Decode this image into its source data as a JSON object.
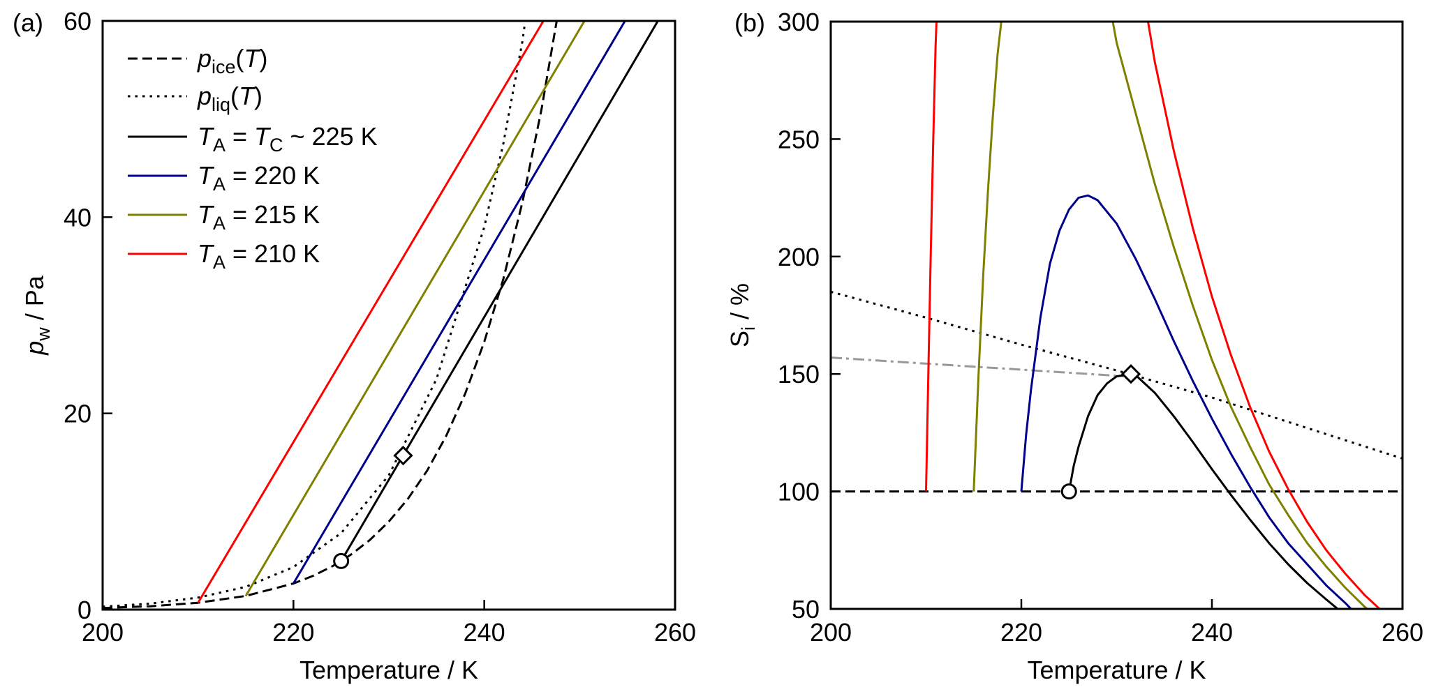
{
  "chart_data": [
    {
      "panel_label": "(a)",
      "type": "line",
      "xlabel": "Temperature / K",
      "ylabel": [
        {
          "t": "p",
          "i": true
        },
        {
          "t": "w",
          "sub": true
        },
        {
          "t": " / Pa"
        }
      ],
      "xlim": [
        200,
        260
      ],
      "ylim": [
        0,
        60
      ],
      "xticks": [
        200,
        220,
        240,
        260
      ],
      "yticks": [
        0,
        20,
        40,
        60
      ],
      "grid": false,
      "legend": {
        "placement": "top-left",
        "entries": [
          {
            "series": 0,
            "label": [
              {
                "t": "p",
                "i": true
              },
              {
                "t": "ice",
                "sub": true
              },
              {
                "t": "("
              },
              {
                "t": "T",
                "i": true
              },
              {
                "t": ")"
              }
            ]
          },
          {
            "series": 1,
            "label": [
              {
                "t": "p",
                "i": true
              },
              {
                "t": "liq",
                "sub": true
              },
              {
                "t": "("
              },
              {
                "t": "T",
                "i": true
              },
              {
                "t": ")"
              }
            ]
          },
          {
            "series": 2,
            "label": [
              {
                "t": "T",
                "i": true
              },
              {
                "t": "A",
                "sub": true
              },
              {
                "t": " = "
              },
              {
                "t": "T",
                "i": true
              },
              {
                "t": "C",
                "sub": true
              },
              {
                "t": " ~ 225 K"
              }
            ]
          },
          {
            "series": 3,
            "label": [
              {
                "t": "T",
                "i": true
              },
              {
                "t": "A",
                "sub": true
              },
              {
                "t": " = 220 K"
              }
            ]
          },
          {
            "series": 4,
            "label": [
              {
                "t": "T",
                "i": true
              },
              {
                "t": "A",
                "sub": true
              },
              {
                "t": " = 215 K"
              }
            ]
          },
          {
            "series": 5,
            "label": [
              {
                "t": "T",
                "i": true
              },
              {
                "t": "A",
                "sub": true
              },
              {
                "t": " = 210 K"
              }
            ]
          }
        ]
      },
      "series": [
        {
          "name": "p_ice(T)",
          "color": "#000000",
          "linestyle": "dashed",
          "x": [
            200,
            205,
            210,
            215,
            220,
            222,
            224,
            225,
            226,
            228,
            230,
            232,
            234,
            236,
            238,
            240,
            242,
            244,
            246,
            248
          ],
          "y": [
            0.16,
            0.34,
            0.7,
            1.39,
            2.66,
            3.42,
            4.38,
            4.95,
            5.59,
            7.09,
            8.97,
            11.29,
            14.15,
            17.68,
            22.0,
            27.3,
            33.7,
            41.5,
            51.0,
            62.3
          ]
        },
        {
          "name": "p_liq(T)",
          "color": "#000000",
          "linestyle": "dotted",
          "x": [
            200,
            205,
            210,
            215,
            220,
            225,
            230,
            235,
            240,
            242,
            244,
            245
          ],
          "y": [
            0.3,
            0.61,
            1.22,
            2.32,
            4.34,
            7.8,
            13.7,
            23.5,
            39.0,
            47.5,
            57.9,
            65.0
          ]
        },
        {
          "name": "T_A = T_C ~ 225 K",
          "color": "#000000",
          "linestyle": "solid",
          "x": [
            225,
            258.2
          ],
          "y": [
            4.95,
            60
          ]
        },
        {
          "name": "T_A = 220 K",
          "color": "#00008B",
          "linestyle": "solid",
          "x": [
            220,
            254.75
          ],
          "y": [
            2.66,
            60
          ]
        },
        {
          "name": "T_A = 215 K",
          "color": "#808000",
          "linestyle": "solid",
          "x": [
            215,
            250.5
          ],
          "y": [
            1.39,
            60
          ]
        },
        {
          "name": "T_A = 210 K",
          "color": "#FF0000",
          "linestyle": "solid",
          "x": [
            210,
            246.2
          ],
          "y": [
            0.7,
            60
          ]
        }
      ],
      "markers": [
        {
          "shape": "circle",
          "x": 225,
          "y": 4.95
        },
        {
          "shape": "diamond",
          "x": 231.5,
          "y": 15.7
        }
      ]
    },
    {
      "panel_label": "(b)",
      "type": "line",
      "xlabel": "Temperature / K",
      "ylabel": [
        {
          "t": "S"
        },
        {
          "t": "i",
          "sub": true
        },
        {
          "t": " / %"
        }
      ],
      "xlim": [
        200,
        260
      ],
      "ylim": [
        50,
        300
      ],
      "xticks": [
        200,
        220,
        240,
        260
      ],
      "yticks": [
        50,
        100,
        150,
        200,
        250,
        300
      ],
      "grid": false,
      "series": [
        {
          "color": "#000000",
          "linestyle": "dashed",
          "x": [
            200,
            260
          ],
          "y": [
            100,
            100
          ]
        },
        {
          "color": "#000000",
          "linestyle": "dotted",
          "x": [
            200,
            210,
            220,
            230,
            240,
            250,
            260
          ],
          "y": [
            185,
            174,
            162.5,
            151.5,
            140,
            127,
            114
          ]
        },
        {
          "color": "#999999",
          "linestyle": "dashdot",
          "x": [
            200,
            231
          ],
          "y": [
            157,
            149
          ]
        },
        {
          "color": "#000000",
          "linestyle": "solid",
          "x": [
            225,
            225.5,
            226,
            227,
            228,
            229,
            230,
            231.5,
            232,
            234,
            236,
            238,
            240,
            242,
            244,
            246,
            248,
            250,
            252,
            253.2
          ],
          "y": [
            100,
            111,
            119,
            132,
            141,
            146,
            149,
            150,
            149.5,
            142,
            132,
            121,
            109.5,
            98.5,
            88,
            78,
            69,
            61,
            54,
            50
          ]
        },
        {
          "color": "#00008B",
          "linestyle": "solid",
          "x": [
            220,
            220.5,
            221,
            222,
            223,
            224,
            225,
            226,
            227,
            228,
            230,
            232,
            234,
            236,
            238,
            240,
            242,
            244,
            246,
            248,
            250,
            252,
            254,
            254.6
          ],
          "y": [
            100,
            124,
            143,
            174,
            197,
            211,
            220,
            225,
            226,
            224,
            214,
            199,
            182,
            164,
            147,
            131,
            116,
            102,
            89,
            78,
            69,
            60,
            52.5,
            50
          ]
        },
        {
          "color": "#808000",
          "linestyle": "solid",
          "x": [
            215,
            215.5,
            216,
            216.5,
            217,
            217.5,
            217.9
          ],
          "y": [
            100,
            149,
            192,
            228,
            259,
            286,
            300
          ]
        },
        {
          "color": "#808000",
          "linestyle": "solid",
          "x": [
            229.6,
            230,
            231,
            232,
            234,
            236,
            238,
            240,
            242,
            244,
            246,
            248,
            250,
            252,
            254,
            256,
            256.3
          ],
          "y": [
            300,
            291,
            276,
            261,
            231,
            204,
            179,
            156,
            136,
            119,
            103,
            90,
            78,
            68,
            59,
            51,
            50
          ]
        },
        {
          "color": "#FF0000",
          "linestyle": "solid",
          "x": [
            210,
            210.25,
            210.5,
            210.75,
            211,
            211.1
          ],
          "y": [
            100,
            152,
            202,
            248,
            290,
            300
          ]
        },
        {
          "color": "#FF0000",
          "linestyle": "solid",
          "x": [
            233.3,
            234,
            236,
            238,
            240,
            242,
            244,
            246,
            248,
            250,
            252,
            254,
            256,
            257.6
          ],
          "y": [
            300,
            283,
            245,
            212,
            183,
            158,
            136,
            117,
            101,
            87,
            75,
            65,
            56,
            50
          ]
        }
      ],
      "markers": [
        {
          "shape": "circle",
          "x": 225,
          "y": 100
        },
        {
          "shape": "diamond",
          "x": 231.5,
          "y": 150
        }
      ]
    }
  ]
}
